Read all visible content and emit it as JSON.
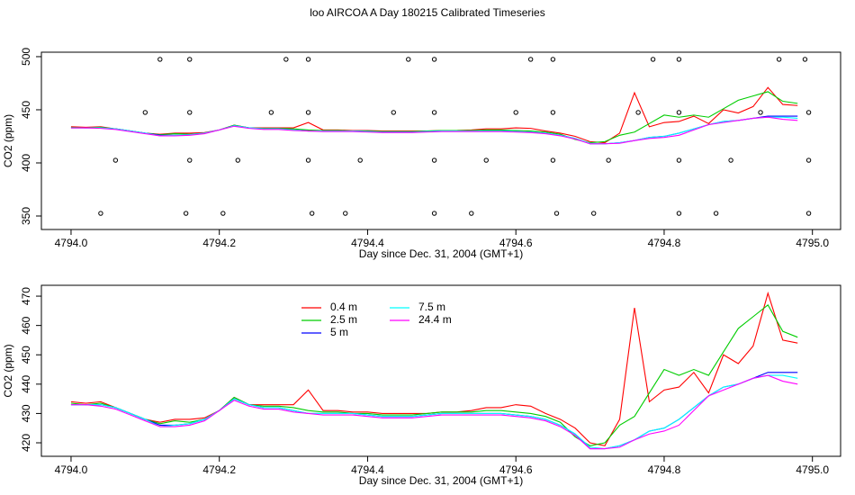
{
  "chart_data": [
    {
      "type": "line",
      "title": "loo AIRCOA A  Day 180215  Calibrated Timeseries",
      "xlabel": "Day since Dec. 31, 2004 (GMT+1)",
      "ylabel": "CO2 (ppm)",
      "xlim": [
        4793.96,
        4795.038
      ],
      "ylim": [
        337.3,
        504.2
      ],
      "xticks": [
        {
          "value": 4794.0,
          "label": "4794.0"
        },
        {
          "value": 4794.2,
          "label": "4794.2"
        },
        {
          "value": 4794.4,
          "label": "4794.4"
        },
        {
          "value": 4794.6,
          "label": "4794.6"
        },
        {
          "value": 4794.8,
          "label": "4794.8"
        },
        {
          "value": 4795.0,
          "label": "4795.0"
        }
      ],
      "yticks": [
        350,
        400,
        450,
        500
      ],
      "x": [
        4794.0,
        4794.02,
        4794.04,
        4794.06,
        4794.08,
        4794.1,
        4794.12,
        4794.14,
        4794.16,
        4794.18,
        4794.2,
        4794.22,
        4794.24,
        4794.26,
        4794.28,
        4794.3,
        4794.32,
        4794.34,
        4794.36,
        4794.38,
        4794.4,
        4794.42,
        4794.44,
        4794.46,
        4794.48,
        4794.5,
        4794.52,
        4794.54,
        4794.56,
        4794.58,
        4794.6,
        4794.62,
        4794.64,
        4794.66,
        4794.68,
        4794.7,
        4794.72,
        4794.74,
        4794.76,
        4794.78,
        4794.8,
        4794.82,
        4794.84,
        4794.86,
        4794.88,
        4794.9,
        4794.92,
        4794.94,
        4794.96,
        4794.98
      ],
      "series": [
        {
          "color": "#ff0000",
          "values": [
            434,
            433.5,
            434,
            432,
            430,
            428,
            427,
            428,
            428,
            428.5,
            431,
            435.5,
            433,
            433,
            433,
            433,
            438,
            431,
            431,
            430.5,
            430.5,
            430,
            430,
            430,
            430,
            430.5,
            430.5,
            431,
            432,
            432,
            433,
            432.5,
            430,
            428,
            425,
            420,
            419,
            428,
            466,
            434,
            438,
            439,
            444,
            437,
            450,
            447,
            453,
            471,
            455,
            454
          ]
        },
        {
          "color": "#00cd00",
          "values": [
            433.5,
            433,
            433.5,
            432,
            430,
            428,
            426.5,
            427.5,
            427,
            428,
            431,
            435.5,
            433,
            432.5,
            432.5,
            432,
            431,
            430.5,
            430.5,
            430,
            430,
            429.5,
            429.5,
            429.5,
            430,
            430.5,
            430.5,
            430.5,
            431,
            431,
            430.5,
            430,
            429,
            427,
            422,
            419,
            420,
            426,
            429,
            437,
            445,
            443,
            445,
            443,
            451,
            459,
            463,
            467,
            458,
            456
          ]
        },
        {
          "color": "#0000ff",
          "values": [
            433,
            433,
            433,
            432,
            430,
            428,
            426,
            426,
            426.5,
            428,
            431,
            435,
            433,
            432,
            432,
            431,
            430,
            430,
            430,
            430,
            429.5,
            429,
            429,
            429,
            429.5,
            430,
            430,
            430,
            430,
            430,
            429.5,
            429,
            428,
            426,
            423,
            418,
            418,
            419,
            421,
            424,
            425,
            428,
            432,
            436,
            439,
            440,
            442,
            444,
            444,
            444
          ]
        },
        {
          "color": "#00ffff",
          "values": [
            433,
            433,
            433,
            432,
            430,
            428,
            425.5,
            426,
            426.5,
            428,
            431,
            435,
            433,
            432,
            432,
            431,
            430,
            430,
            430,
            430,
            429.5,
            429,
            429,
            429,
            429.5,
            430,
            430,
            430,
            430,
            430,
            429.5,
            429,
            428,
            426,
            423,
            418.5,
            418,
            419,
            421,
            424,
            425,
            428,
            432,
            436,
            439,
            440,
            442,
            443,
            443,
            442
          ]
        },
        {
          "color": "#ff00ff",
          "values": [
            433,
            433,
            432.5,
            431.5,
            429.5,
            427.5,
            425.5,
            425.5,
            426,
            427.5,
            431,
            434.5,
            432.5,
            431.5,
            431.5,
            430.5,
            430,
            429.5,
            429.5,
            429.5,
            429,
            428.5,
            428.5,
            428.5,
            429,
            429.5,
            429.5,
            429.5,
            429.5,
            429.5,
            429,
            428.5,
            427.5,
            425.5,
            422.5,
            418,
            418,
            418.5,
            421,
            423,
            424,
            426,
            431,
            436,
            438,
            440,
            442,
            443,
            441,
            440
          ]
        }
      ],
      "points": {
        "x": [
          4794.12,
          4794.16,
          4794.29,
          4794.32,
          4794.455,
          4794.49,
          4794.62,
          4794.65,
          4794.785,
          4794.82,
          4794.955,
          4794.99,
          4794.1,
          4794.16,
          4794.27,
          4794.32,
          4794.435,
          4794.49,
          4794.6,
          4794.65,
          4794.765,
          4794.82,
          4794.93,
          4794.995,
          4794.06,
          4794.16,
          4794.225,
          4794.32,
          4794.39,
          4794.49,
          4794.56,
          4794.65,
          4794.725,
          4794.82,
          4794.89,
          4794.995,
          4794.04,
          4794.155,
          4794.205,
          4794.325,
          4794.37,
          4794.49,
          4794.54,
          4794.655,
          4794.705,
          4794.82,
          4794.87,
          4794.995
        ],
        "y": [
          497.5,
          497.5,
          497.5,
          497.5,
          497.5,
          497.5,
          497.5,
          497.5,
          497.5,
          497.5,
          497.5,
          497.5,
          447.5,
          447.5,
          447.5,
          447.5,
          447.5,
          447.5,
          447.5,
          447.5,
          447.5,
          447.5,
          447.5,
          447.5,
          402.5,
          402.5,
          402.5,
          402.5,
          402.5,
          402.5,
          402.5,
          402.5,
          402.5,
          402.5,
          402.5,
          402.5,
          352.5,
          352.5,
          352.5,
          352.5,
          352.5,
          352.5,
          352.5,
          352.5,
          352.5,
          352.5,
          352.5,
          352.5
        ]
      }
    },
    {
      "type": "line",
      "xlabel": "Day since Dec. 31, 2004 (GMT+1)",
      "ylabel": "CO2 (ppm)",
      "xlim": [
        4793.96,
        4795.038
      ],
      "ylim": [
        415.4,
        473.7
      ],
      "xticks": [
        {
          "value": 4794.0,
          "label": "4794.0"
        },
        {
          "value": 4794.2,
          "label": "4794.2"
        },
        {
          "value": 4794.4,
          "label": "4794.4"
        },
        {
          "value": 4794.6,
          "label": "4794.6"
        },
        {
          "value": 4794.8,
          "label": "4794.8"
        },
        {
          "value": 4795.0,
          "label": "4795.0"
        }
      ],
      "yticks": [
        420,
        430,
        440,
        450,
        460,
        470
      ],
      "legend": "top-left",
      "x": [
        4794.0,
        4794.02,
        4794.04,
        4794.06,
        4794.08,
        4794.1,
        4794.12,
        4794.14,
        4794.16,
        4794.18,
        4794.2,
        4794.22,
        4794.24,
        4794.26,
        4794.28,
        4794.3,
        4794.32,
        4794.34,
        4794.36,
        4794.38,
        4794.4,
        4794.42,
        4794.44,
        4794.46,
        4794.48,
        4794.5,
        4794.52,
        4794.54,
        4794.56,
        4794.58,
        4794.6,
        4794.62,
        4794.64,
        4794.66,
        4794.68,
        4794.7,
        4794.72,
        4794.74,
        4794.76,
        4794.78,
        4794.8,
        4794.82,
        4794.84,
        4794.86,
        4794.88,
        4794.9,
        4794.92,
        4794.94,
        4794.96,
        4794.98
      ],
      "series": [
        {
          "name": "0.4 m",
          "color": "#ff0000",
          "values": [
            434,
            433.5,
            434,
            432,
            430,
            428,
            427,
            428,
            428,
            428.5,
            431,
            435.5,
            433,
            433,
            433,
            433,
            438,
            431,
            431,
            430.5,
            430.5,
            430,
            430,
            430,
            430,
            430.5,
            430.5,
            431,
            432,
            432,
            433,
            432.5,
            430,
            428,
            425,
            420,
            419,
            428,
            466,
            434,
            438,
            439,
            444,
            437,
            450,
            447,
            453,
            471,
            455,
            454
          ]
        },
        {
          "name": "2.5 m",
          "color": "#00cd00",
          "values": [
            433.5,
            433,
            433.5,
            432,
            430,
            428,
            426.5,
            427.5,
            427,
            428,
            431,
            435.5,
            433,
            432.5,
            432.5,
            432,
            431,
            430.5,
            430.5,
            430,
            430,
            429.5,
            429.5,
            429.5,
            430,
            430.5,
            430.5,
            430.5,
            431,
            431,
            430.5,
            430,
            429,
            427,
            422,
            419,
            420,
            426,
            429,
            437,
            445,
            443,
            445,
            443,
            451,
            459,
            463,
            467,
            458,
            456
          ]
        },
        {
          "name": "5 m",
          "color": "#0000ff",
          "values": [
            433,
            433,
            433,
            432,
            430,
            428,
            426,
            426,
            426.5,
            428,
            431,
            435,
            433,
            432,
            432,
            431,
            430,
            430,
            430,
            430,
            429.5,
            429,
            429,
            429,
            429.5,
            430,
            430,
            430,
            430,
            430,
            429.5,
            429,
            428,
            426,
            423,
            418,
            418,
            419,
            421,
            424,
            425,
            428,
            432,
            436,
            439,
            440,
            442,
            444,
            444,
            444
          ]
        },
        {
          "name": "7.5 m",
          "color": "#00ffff",
          "values": [
            433,
            433,
            433,
            432,
            430,
            428,
            425.5,
            426,
            426.5,
            428,
            431,
            435,
            433,
            432,
            432,
            431,
            430,
            430,
            430,
            430,
            429.5,
            429,
            429,
            429,
            429.5,
            430,
            430,
            430,
            430,
            430,
            429.5,
            429,
            428,
            426,
            423,
            418.5,
            418,
            419,
            421,
            424,
            425,
            428,
            432,
            436,
            439,
            440,
            442,
            443,
            443,
            442
          ]
        },
        {
          "name": "24.4 m",
          "color": "#ff00ff",
          "values": [
            433,
            433,
            432.5,
            431.5,
            429.5,
            427.5,
            425.5,
            425.5,
            426,
            427.5,
            431,
            434.5,
            432.5,
            431.5,
            431.5,
            430.5,
            430,
            429.5,
            429.5,
            429.5,
            429,
            428.5,
            428.5,
            428.5,
            429,
            429.5,
            429.5,
            429.5,
            429.5,
            429.5,
            429,
            428.5,
            427.5,
            425.5,
            422.5,
            418,
            418,
            418.5,
            421,
            423,
            424,
            426,
            431,
            436,
            438,
            440,
            442,
            443,
            441,
            440
          ]
        }
      ]
    }
  ]
}
